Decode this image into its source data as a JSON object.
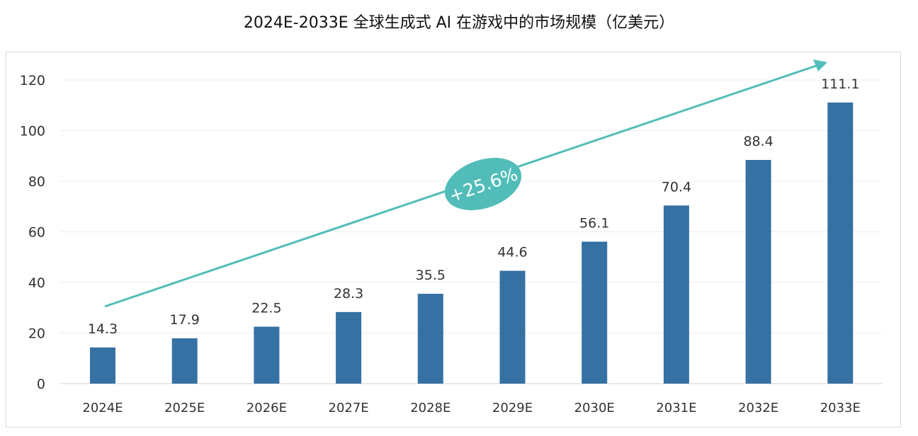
{
  "chart_data": {
    "type": "bar",
    "title": "2024E-2033E 全球生成式 AI 在游戏中的市场规模（亿美元）",
    "categories": [
      "2024E",
      "2025E",
      "2026E",
      "2027E",
      "2028E",
      "2029E",
      "2030E",
      "2031E",
      "2032E",
      "2033E"
    ],
    "values": [
      14.3,
      17.9,
      22.5,
      28.3,
      35.5,
      44.6,
      56.1,
      70.4,
      88.4,
      111.1
    ],
    "data_labels": [
      "14.3",
      "17.9",
      "22.5",
      "28.3",
      "35.5",
      "44.6",
      "56.1",
      "70.4",
      "88.4",
      "111.1"
    ],
    "xlabel": "",
    "ylabel": "",
    "ylim": [
      0,
      120
    ],
    "yticks": [
      0,
      20,
      40,
      60,
      80,
      100,
      120
    ],
    "grid": true,
    "annotation": "+25.6%",
    "colors": {
      "bar": "#3571a3",
      "trend": "#52bdb8",
      "grid": "#ececec"
    }
  }
}
